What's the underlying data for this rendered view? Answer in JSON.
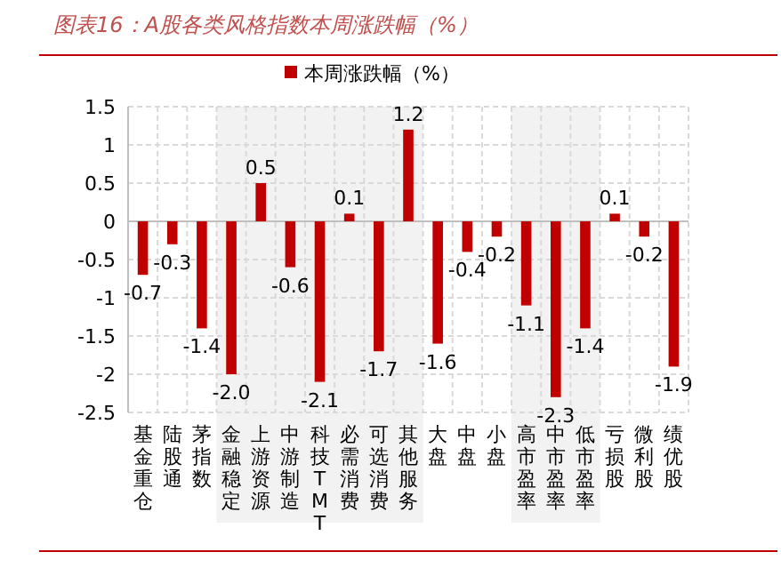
{
  "chart_data": {
    "type": "bar",
    "title": "图表16：A股各类风格指数本周涨跌幅（%）",
    "categories": [
      "基金重仓",
      "陆股通",
      "茅指数",
      "金融稳定",
      "上游资源",
      "中游制造",
      "科技TMT",
      "必需消费",
      "可选消费",
      "其他服务",
      "大盘",
      "中盘",
      "小盘",
      "高市盈率",
      "中市盈率",
      "低市盈率",
      "亏损股",
      "微利股",
      "绩优股"
    ],
    "series": [
      {
        "name": "本周涨跌幅（%）",
        "color": "#c00000",
        "values": [
          -0.7,
          -0.3,
          -1.4,
          -2.0,
          0.5,
          -0.6,
          -2.1,
          0.1,
          -1.7,
          1.2,
          -1.6,
          -0.4,
          -0.2,
          -1.1,
          -2.3,
          -1.4,
          0.1,
          -0.2,
          -1.9
        ],
        "value_labels": [
          "-0.7",
          "-0.3",
          "-1.4",
          "-2.0",
          "0.5",
          "-0.6",
          "-2.1",
          "0.1",
          "-1.7",
          "1.2",
          "-1.6",
          "-0.4",
          "-0.2",
          "-1.1",
          "-2.3",
          "-1.4",
          "0.1",
          "-0.2",
          "-1.9"
        ]
      }
    ],
    "ylim": [
      -2.5,
      1.5
    ],
    "yticks": [
      -2.5,
      -2,
      -1.5,
      -1,
      -0.5,
      0,
      0.5,
      1,
      1.5
    ],
    "bands": [
      {
        "axis": "x",
        "from": "金融稳定",
        "to": "其他服务",
        "color": "#f2f2f2"
      },
      {
        "axis": "x",
        "from": "高市盈率",
        "to": "低市盈率",
        "color": "#f2f2f2"
      }
    ],
    "grid": true,
    "legend": "top"
  }
}
